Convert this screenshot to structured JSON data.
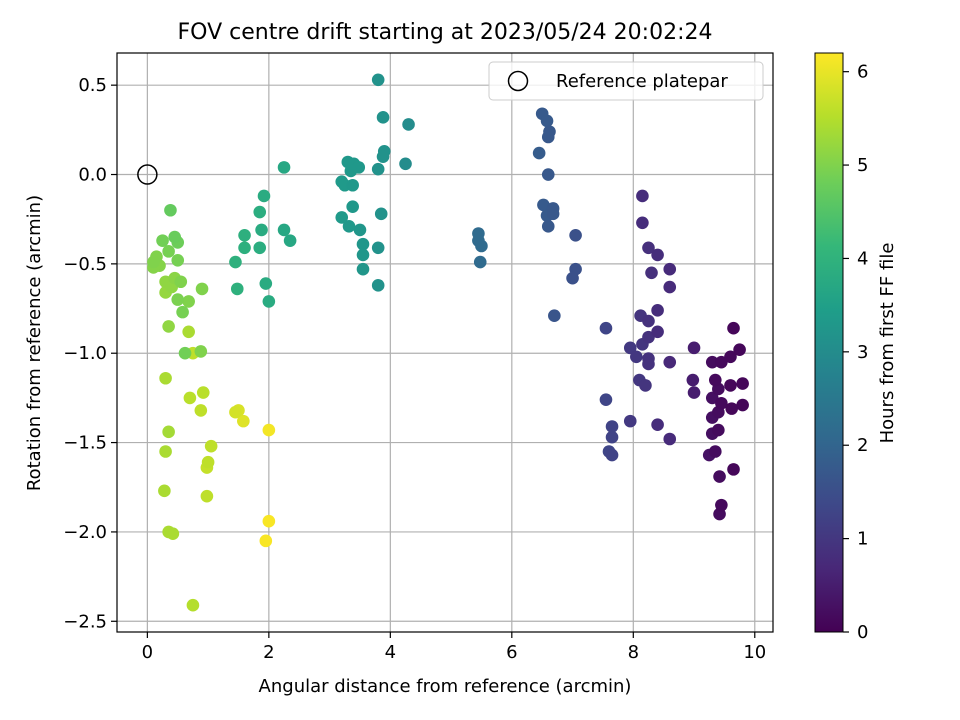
{
  "chart_data": {
    "type": "scatter",
    "title": "FOV centre drift starting at 2023/05/24 20:02:24",
    "xlabel": "Angular distance from reference (arcmin)",
    "ylabel": "Rotation from reference (arcmin)",
    "xlim": [
      -0.5,
      10.3
    ],
    "ylim": [
      -2.56,
      0.68
    ],
    "xticks": [
      0,
      2,
      4,
      6,
      8,
      10
    ],
    "yticks": [
      0.5,
      0.0,
      -0.5,
      -1.0,
      -1.5,
      -2.0,
      -2.5
    ],
    "xtick_labels": [
      "0",
      "2",
      "4",
      "6",
      "8",
      "10"
    ],
    "ytick_labels": [
      "0.5",
      "0.0",
      "−0.5",
      "−1.0",
      "−1.5",
      "−2.0",
      "−2.5"
    ],
    "grid": true,
    "legend": {
      "placement": "top-right",
      "label": "Reference platepar"
    },
    "reference_point": {
      "x": 0,
      "y": 0
    },
    "colorbar": {
      "label": "Hours from first FF file",
      "range": [
        0,
        6.2
      ],
      "ticks": [
        0,
        1,
        2,
        3,
        4,
        5,
        6
      ],
      "tick_labels": [
        "0",
        "1",
        "2",
        "3",
        "4",
        "5",
        "6"
      ],
      "colormap": [
        "#440154",
        "#482878",
        "#3e4989",
        "#31688e",
        "#26828e",
        "#1f9e89",
        "#35b779",
        "#6ece58",
        "#b5de2b",
        "#fde725"
      ]
    },
    "points": [
      {
        "x": 9.65,
        "y": -0.86,
        "t": 0.1
      },
      {
        "x": 9.75,
        "y": -0.98,
        "t": 0.1
      },
      {
        "x": 9.6,
        "y": -1.02,
        "t": 0.12
      },
      {
        "x": 9.45,
        "y": -1.05,
        "t": 0.15
      },
      {
        "x": 9.3,
        "y": -1.05,
        "t": 0.2
      },
      {
        "x": 9.35,
        "y": -1.15,
        "t": 0.15
      },
      {
        "x": 9.8,
        "y": -1.17,
        "t": 0.1
      },
      {
        "x": 9.6,
        "y": -1.18,
        "t": 0.1
      },
      {
        "x": 9.4,
        "y": -1.2,
        "t": 0.2
      },
      {
        "x": 9.3,
        "y": -1.25,
        "t": 0.25
      },
      {
        "x": 9.45,
        "y": -1.28,
        "t": 0.15
      },
      {
        "x": 9.8,
        "y": -1.29,
        "t": 0.08
      },
      {
        "x": 9.62,
        "y": -1.31,
        "t": 0.1
      },
      {
        "x": 9.4,
        "y": -1.33,
        "t": 0.2
      },
      {
        "x": 9.3,
        "y": -1.36,
        "t": 0.25
      },
      {
        "x": 9.4,
        "y": -1.43,
        "t": 0.18
      },
      {
        "x": 9.3,
        "y": -1.45,
        "t": 0.25
      },
      {
        "x": 9.35,
        "y": -1.55,
        "t": 0.2
      },
      {
        "x": 9.25,
        "y": -1.57,
        "t": 0.3
      },
      {
        "x": 9.65,
        "y": -1.65,
        "t": 0.1
      },
      {
        "x": 9.42,
        "y": -1.69,
        "t": 0.2
      },
      {
        "x": 9.45,
        "y": -1.85,
        "t": 0.15
      },
      {
        "x": 9.42,
        "y": -1.9,
        "t": 0.2
      },
      {
        "x": 8.15,
        "y": -0.12,
        "t": 0.8
      },
      {
        "x": 8.15,
        "y": -0.27,
        "t": 0.8
      },
      {
        "x": 8.25,
        "y": -0.41,
        "t": 0.85
      },
      {
        "x": 8.4,
        "y": -0.45,
        "t": 0.8
      },
      {
        "x": 8.6,
        "y": -0.53,
        "t": 0.75
      },
      {
        "x": 8.3,
        "y": -0.55,
        "t": 0.85
      },
      {
        "x": 8.6,
        "y": -0.63,
        "t": 0.75
      },
      {
        "x": 8.4,
        "y": -0.76,
        "t": 0.8
      },
      {
        "x": 8.12,
        "y": -0.79,
        "t": 0.95
      },
      {
        "x": 8.25,
        "y": -0.82,
        "t": 0.9
      },
      {
        "x": 8.4,
        "y": -0.88,
        "t": 0.8
      },
      {
        "x": 8.25,
        "y": -0.91,
        "t": 0.9
      },
      {
        "x": 8.15,
        "y": -0.95,
        "t": 0.95
      },
      {
        "x": 7.95,
        "y": -0.97,
        "t": 1.05
      },
      {
        "x": 8.05,
        "y": -1.02,
        "t": 1.0
      },
      {
        "x": 8.25,
        "y": -1.03,
        "t": 0.9
      },
      {
        "x": 8.25,
        "y": -1.06,
        "t": 0.9
      },
      {
        "x": 8.6,
        "y": -1.05,
        "t": 0.7
      },
      {
        "x": 9.0,
        "y": -0.97,
        "t": 0.5
      },
      {
        "x": 8.98,
        "y": -1.15,
        "t": 0.5
      },
      {
        "x": 9.0,
        "y": -1.22,
        "t": 0.5
      },
      {
        "x": 8.1,
        "y": -1.15,
        "t": 1.0
      },
      {
        "x": 8.2,
        "y": -1.18,
        "t": 0.95
      },
      {
        "x": 7.95,
        "y": -1.38,
        "t": 1.05
      },
      {
        "x": 8.4,
        "y": -1.4,
        "t": 0.8
      },
      {
        "x": 8.6,
        "y": -1.48,
        "t": 0.75
      },
      {
        "x": 7.55,
        "y": -0.86,
        "t": 1.3
      },
      {
        "x": 7.55,
        "y": -1.26,
        "t": 1.3
      },
      {
        "x": 7.65,
        "y": -1.41,
        "t": 1.25
      },
      {
        "x": 7.65,
        "y": -1.47,
        "t": 1.25
      },
      {
        "x": 7.6,
        "y": -1.55,
        "t": 1.3
      },
      {
        "x": 7.65,
        "y": -1.57,
        "t": 1.25
      },
      {
        "x": 6.5,
        "y": 0.34,
        "t": 1.75
      },
      {
        "x": 6.58,
        "y": 0.3,
        "t": 1.75
      },
      {
        "x": 6.62,
        "y": 0.24,
        "t": 1.7
      },
      {
        "x": 6.6,
        "y": 0.21,
        "t": 1.7
      },
      {
        "x": 6.45,
        "y": 0.12,
        "t": 1.8
      },
      {
        "x": 6.6,
        "y": 0.0,
        "t": 1.7
      },
      {
        "x": 6.52,
        "y": -0.17,
        "t": 1.75
      },
      {
        "x": 6.68,
        "y": -0.19,
        "t": 1.7
      },
      {
        "x": 6.68,
        "y": -0.22,
        "t": 1.7
      },
      {
        "x": 6.58,
        "y": -0.23,
        "t": 1.75
      },
      {
        "x": 6.6,
        "y": -0.29,
        "t": 1.7
      },
      {
        "x": 7.05,
        "y": -0.34,
        "t": 1.55
      },
      {
        "x": 7.05,
        "y": -0.53,
        "t": 1.55
      },
      {
        "x": 7.0,
        "y": -0.58,
        "t": 1.55
      },
      {
        "x": 6.7,
        "y": -0.79,
        "t": 1.65
      },
      {
        "x": 5.45,
        "y": -0.33,
        "t": 2.15
      },
      {
        "x": 5.45,
        "y": -0.37,
        "t": 2.15
      },
      {
        "x": 5.5,
        "y": -0.4,
        "t": 2.15
      },
      {
        "x": 5.48,
        "y": -0.49,
        "t": 2.15
      },
      {
        "x": 3.8,
        "y": 0.53,
        "t": 3.15
      },
      {
        "x": 3.88,
        "y": 0.32,
        "t": 3.15
      },
      {
        "x": 4.3,
        "y": 0.28,
        "t": 3.0
      },
      {
        "x": 3.9,
        "y": 0.13,
        "t": 3.15
      },
      {
        "x": 3.88,
        "y": 0.1,
        "t": 3.15
      },
      {
        "x": 3.3,
        "y": 0.07,
        "t": 3.3
      },
      {
        "x": 3.4,
        "y": 0.06,
        "t": 3.3
      },
      {
        "x": 4.25,
        "y": 0.06,
        "t": 3.0
      },
      {
        "x": 3.48,
        "y": 0.04,
        "t": 3.3
      },
      {
        "x": 3.35,
        "y": 0.02,
        "t": 3.3
      },
      {
        "x": 3.8,
        "y": 0.03,
        "t": 3.15
      },
      {
        "x": 3.2,
        "y": -0.04,
        "t": 3.35
      },
      {
        "x": 3.25,
        "y": -0.06,
        "t": 3.35
      },
      {
        "x": 3.38,
        "y": -0.06,
        "t": 3.3
      },
      {
        "x": 3.38,
        "y": -0.18,
        "t": 3.3
      },
      {
        "x": 3.85,
        "y": -0.22,
        "t": 3.15
      },
      {
        "x": 3.2,
        "y": -0.24,
        "t": 3.35
      },
      {
        "x": 3.32,
        "y": -0.29,
        "t": 3.3
      },
      {
        "x": 3.5,
        "y": -0.31,
        "t": 3.25
      },
      {
        "x": 3.55,
        "y": -0.39,
        "t": 3.25
      },
      {
        "x": 3.8,
        "y": -0.41,
        "t": 3.15
      },
      {
        "x": 3.55,
        "y": -0.45,
        "t": 3.25
      },
      {
        "x": 3.55,
        "y": -0.53,
        "t": 3.25
      },
      {
        "x": 3.8,
        "y": -0.62,
        "t": 3.15
      },
      {
        "x": 2.25,
        "y": 0.04,
        "t": 3.7
      },
      {
        "x": 1.92,
        "y": -0.12,
        "t": 3.8
      },
      {
        "x": 1.85,
        "y": -0.21,
        "t": 3.85
      },
      {
        "x": 2.25,
        "y": -0.31,
        "t": 3.7
      },
      {
        "x": 1.88,
        "y": -0.31,
        "t": 3.8
      },
      {
        "x": 2.35,
        "y": -0.37,
        "t": 3.7
      },
      {
        "x": 1.6,
        "y": -0.34,
        "t": 3.9
      },
      {
        "x": 1.6,
        "y": -0.41,
        "t": 3.9
      },
      {
        "x": 1.85,
        "y": -0.41,
        "t": 3.85
      },
      {
        "x": 1.45,
        "y": -0.49,
        "t": 3.95
      },
      {
        "x": 1.95,
        "y": -0.61,
        "t": 3.8
      },
      {
        "x": 1.48,
        "y": -0.64,
        "t": 3.95
      },
      {
        "x": 2.0,
        "y": -0.71,
        "t": 3.8
      },
      {
        "x": 0.38,
        "y": -0.2,
        "t": 4.7
      },
      {
        "x": 0.45,
        "y": -0.35,
        "t": 4.75
      },
      {
        "x": 0.5,
        "y": -0.38,
        "t": 4.8
      },
      {
        "x": 0.25,
        "y": -0.37,
        "t": 4.85
      },
      {
        "x": 0.35,
        "y": -0.43,
        "t": 4.9
      },
      {
        "x": 0.15,
        "y": -0.46,
        "t": 5.0
      },
      {
        "x": 0.1,
        "y": -0.49,
        "t": 5.0
      },
      {
        "x": 0.2,
        "y": -0.51,
        "t": 5.05
      },
      {
        "x": 0.5,
        "y": -0.48,
        "t": 4.9
      },
      {
        "x": 0.1,
        "y": -0.52,
        "t": 5.05
      },
      {
        "x": 0.3,
        "y": -0.6,
        "t": 5.15
      },
      {
        "x": 0.45,
        "y": -0.58,
        "t": 5.1
      },
      {
        "x": 0.55,
        "y": -0.6,
        "t": 5.0
      },
      {
        "x": 0.3,
        "y": -0.66,
        "t": 5.2
      },
      {
        "x": 0.4,
        "y": -0.63,
        "t": 5.15
      },
      {
        "x": 0.5,
        "y": -0.7,
        "t": 4.95
      },
      {
        "x": 0.68,
        "y": -0.71,
        "t": 5.0
      },
      {
        "x": 0.9,
        "y": -0.64,
        "t": 5.0
      },
      {
        "x": 0.58,
        "y": -0.77,
        "t": 4.9
      },
      {
        "x": 0.35,
        "y": -0.85,
        "t": 5.15
      },
      {
        "x": 0.68,
        "y": -0.88,
        "t": 5.4
      },
      {
        "x": 0.62,
        "y": -1.0,
        "t": 4.85
      },
      {
        "x": 0.88,
        "y": -0.99,
        "t": 5.0
      },
      {
        "x": 0.75,
        "y": -1.0,
        "t": 5.6
      },
      {
        "x": 0.3,
        "y": -1.14,
        "t": 5.4
      },
      {
        "x": 0.92,
        "y": -1.22,
        "t": 5.55
      },
      {
        "x": 0.7,
        "y": -1.25,
        "t": 5.55
      },
      {
        "x": 0.88,
        "y": -1.32,
        "t": 5.6
      },
      {
        "x": 1.45,
        "y": -1.33,
        "t": 5.8
      },
      {
        "x": 1.5,
        "y": -1.32,
        "t": 5.85
      },
      {
        "x": 1.58,
        "y": -1.38,
        "t": 5.9
      },
      {
        "x": 0.35,
        "y": -1.44,
        "t": 5.35
      },
      {
        "x": 2.0,
        "y": -1.43,
        "t": 6.1
      },
      {
        "x": 1.05,
        "y": -1.52,
        "t": 5.6
      },
      {
        "x": 0.3,
        "y": -1.55,
        "t": 5.4
      },
      {
        "x": 1.0,
        "y": -1.61,
        "t": 5.6
      },
      {
        "x": 0.98,
        "y": -1.64,
        "t": 5.65
      },
      {
        "x": 0.28,
        "y": -1.77,
        "t": 5.4
      },
      {
        "x": 0.98,
        "y": -1.8,
        "t": 5.6
      },
      {
        "x": 2.0,
        "y": -1.94,
        "t": 6.15
      },
      {
        "x": 0.35,
        "y": -2.0,
        "t": 5.4
      },
      {
        "x": 0.42,
        "y": -2.01,
        "t": 5.4
      },
      {
        "x": 1.95,
        "y": -2.05,
        "t": 6.15
      },
      {
        "x": 0.75,
        "y": -2.41,
        "t": 5.5
      }
    ]
  }
}
